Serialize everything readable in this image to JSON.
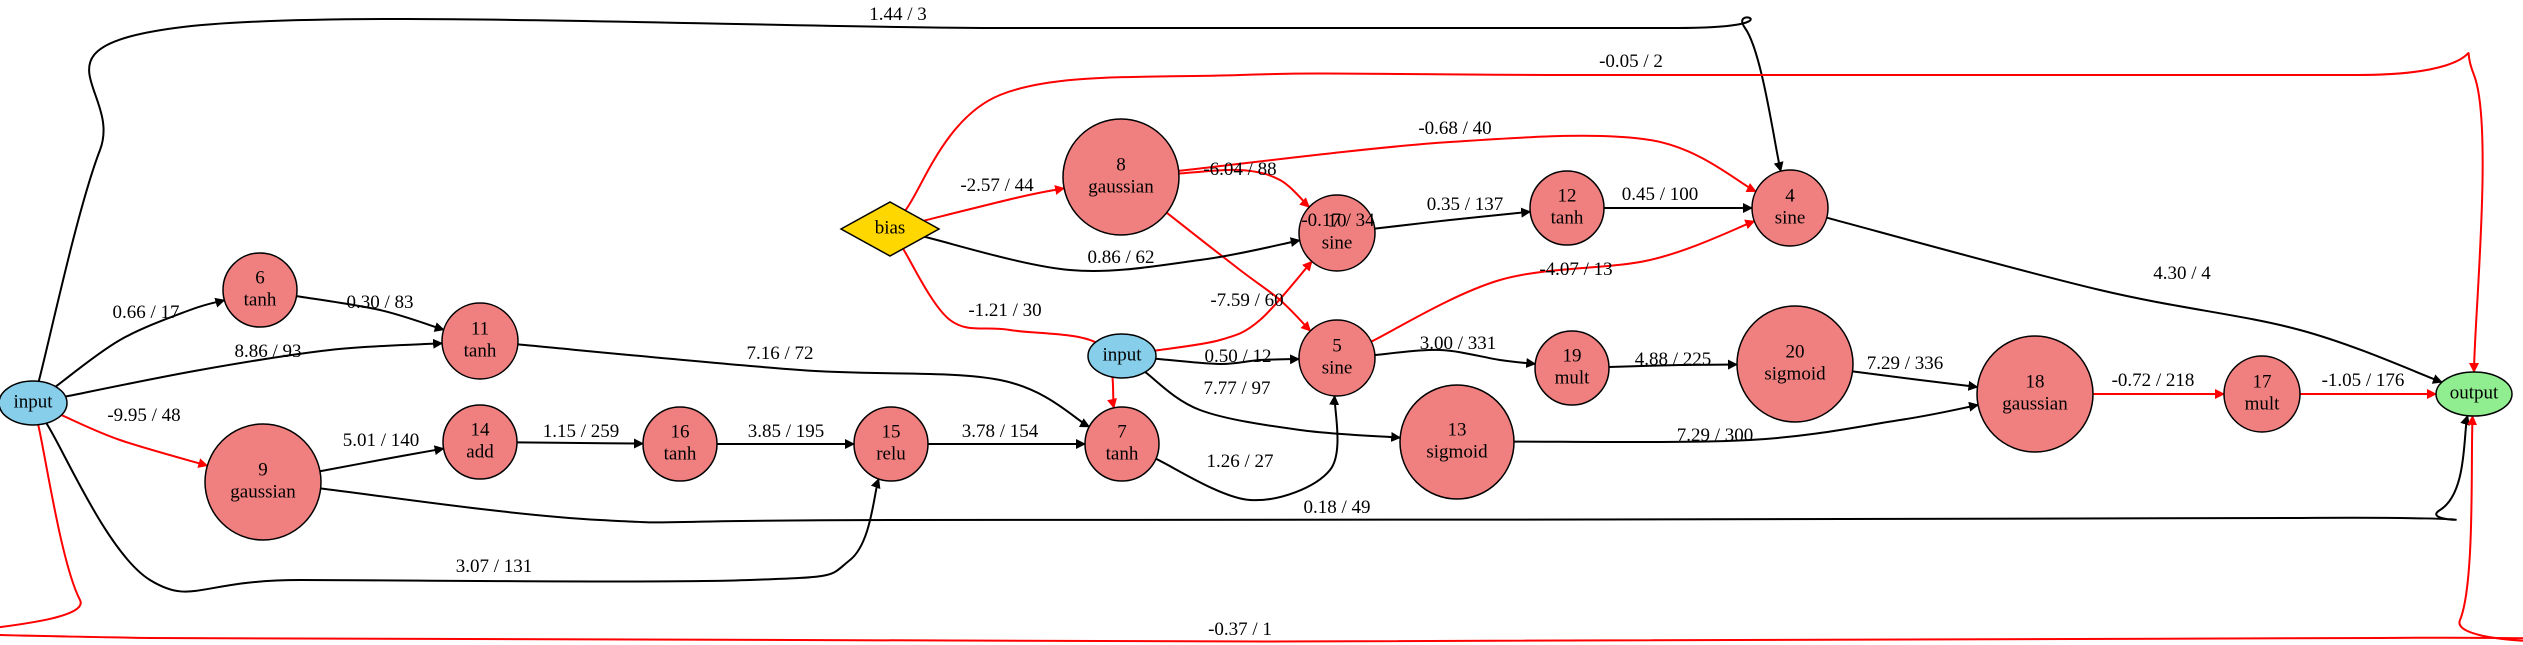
{
  "colors": {
    "hidden_fill": "#f08080",
    "input_fill": "#87ceeb",
    "output_fill": "#90ee90",
    "bias_fill": "#ffd700",
    "positive_edge": "#000000",
    "negative_edge": "#ff0000"
  },
  "nodes": [
    {
      "id": "in_left",
      "lines": [
        "input"
      ]
    },
    {
      "id": "in_mid",
      "lines": [
        "input"
      ]
    },
    {
      "id": "bias",
      "lines": [
        "bias"
      ]
    },
    {
      "id": "out",
      "lines": [
        "output"
      ]
    },
    {
      "id": "n4",
      "lines": [
        "4",
        "sine"
      ]
    },
    {
      "id": "n5",
      "lines": [
        "5",
        "sine"
      ]
    },
    {
      "id": "n6",
      "lines": [
        "6",
        "tanh"
      ]
    },
    {
      "id": "n7",
      "lines": [
        "7",
        "tanh"
      ]
    },
    {
      "id": "n8",
      "lines": [
        "8",
        "gaussian"
      ]
    },
    {
      "id": "n9",
      "lines": [
        "9",
        "gaussian"
      ]
    },
    {
      "id": "n10",
      "lines": [
        "10",
        "sine"
      ]
    },
    {
      "id": "n11",
      "lines": [
        "11",
        "tanh"
      ]
    },
    {
      "id": "n12",
      "lines": [
        "12",
        "tanh"
      ]
    },
    {
      "id": "n13",
      "lines": [
        "13",
        "sigmoid"
      ]
    },
    {
      "id": "n14",
      "lines": [
        "14",
        "add"
      ]
    },
    {
      "id": "n15",
      "lines": [
        "15",
        "relu"
      ]
    },
    {
      "id": "n16",
      "lines": [
        "16",
        "tanh"
      ]
    },
    {
      "id": "n17",
      "lines": [
        "17",
        "mult"
      ]
    },
    {
      "id": "n18",
      "lines": [
        "18",
        "gaussian"
      ]
    },
    {
      "id": "n19",
      "lines": [
        "19",
        "mult"
      ]
    },
    {
      "id": "n20",
      "lines": [
        "20",
        "sigmoid"
      ]
    }
  ],
  "edges": [
    {
      "from": "in_left",
      "to": "n4",
      "label": "1.44 / 3",
      "sign": "positive"
    },
    {
      "from": "bias",
      "to": "out",
      "label": "-0.05 / 2",
      "sign": "negative"
    },
    {
      "from": "n8",
      "to": "n4",
      "label": "-0.68 / 40",
      "sign": "negative"
    },
    {
      "from": "bias",
      "to": "n8",
      "label": "-2.57 / 44",
      "sign": "negative"
    },
    {
      "from": "n8",
      "to": "n10",
      "label": "-6.04 / 88",
      "sign": "negative"
    },
    {
      "from": "n8",
      "to": "n5",
      "label": "-0.17 / 34",
      "sign": "negative"
    },
    {
      "from": "n10",
      "to": "n12",
      "label": "0.35 / 137",
      "sign": "positive"
    },
    {
      "from": "n12",
      "to": "n4",
      "label": "0.45 / 100",
      "sign": "positive"
    },
    {
      "from": "bias",
      "to": "n10",
      "label": "0.86 / 62",
      "sign": "positive"
    },
    {
      "from": "n5",
      "to": "n4",
      "label": "-4.07 / 13",
      "sign": "negative"
    },
    {
      "from": "n4",
      "to": "out",
      "label": "4.30 / 4",
      "sign": "positive"
    },
    {
      "from": "in_left",
      "to": "n6",
      "label": "0.66 / 17",
      "sign": "positive"
    },
    {
      "from": "n6",
      "to": "n11",
      "label": "0.30 / 83",
      "sign": "positive"
    },
    {
      "from": "in_left",
      "to": "n11",
      "label": "8.86 / 93",
      "sign": "positive"
    },
    {
      "from": "bias",
      "to": "n7",
      "label": "-1.21 / 30",
      "sign": "negative"
    },
    {
      "from": "in_mid",
      "to": "n10",
      "label": "-7.59 / 60",
      "sign": "negative"
    },
    {
      "from": "n11",
      "to": "n7",
      "label": "7.16 / 72",
      "sign": "positive"
    },
    {
      "from": "in_mid",
      "to": "n5",
      "label": "0.50 / 12",
      "sign": "positive"
    },
    {
      "from": "n5",
      "to": "n19",
      "label": "3.00 / 331",
      "sign": "positive"
    },
    {
      "from": "n19",
      "to": "n20",
      "label": "4.88 / 225",
      "sign": "positive"
    },
    {
      "from": "n20",
      "to": "n18",
      "label": "7.29 / 336",
      "sign": "positive"
    },
    {
      "from": "in_mid",
      "to": "n13",
      "label": "7.77 / 97",
      "sign": "positive"
    },
    {
      "from": "n18",
      "to": "n17",
      "label": "-0.72 / 218",
      "sign": "negative"
    },
    {
      "from": "n17",
      "to": "out",
      "label": "-1.05 / 176",
      "sign": "negative"
    },
    {
      "from": "in_left",
      "to": "n9",
      "label": "-9.95 / 48",
      "sign": "negative"
    },
    {
      "from": "n9",
      "to": "n14",
      "label": "5.01 / 140",
      "sign": "positive"
    },
    {
      "from": "n14",
      "to": "n16",
      "label": "1.15 / 259",
      "sign": "positive"
    },
    {
      "from": "n16",
      "to": "n15",
      "label": "3.85 / 195",
      "sign": "positive"
    },
    {
      "from": "n15",
      "to": "n7",
      "label": "3.78 / 154",
      "sign": "positive"
    },
    {
      "from": "n13",
      "to": "n18",
      "label": "7.29 / 300",
      "sign": "positive"
    },
    {
      "from": "n7",
      "to": "n5",
      "label": "1.26 / 27",
      "sign": "positive"
    },
    {
      "from": "n9",
      "to": "out",
      "label": "0.18 / 49",
      "sign": "positive"
    },
    {
      "from": "in_left",
      "to": "n15",
      "label": "3.07 / 131",
      "sign": "positive"
    },
    {
      "from": "in_left",
      "to": "out",
      "label": "-0.37 / 1",
      "sign": "negative"
    }
  ]
}
